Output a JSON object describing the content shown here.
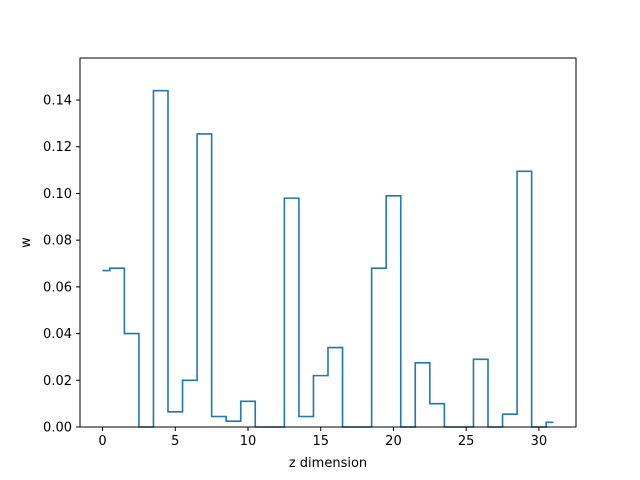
{
  "chart_data": {
    "type": "line",
    "drawstyle": "steps-mid",
    "title": "",
    "xlabel": "z dimension",
    "ylabel": "w",
    "xlim": [
      -1.55,
      32.55
    ],
    "ylim": [
      0,
      0.158
    ],
    "xticks": [
      0,
      5,
      10,
      15,
      20,
      25,
      30
    ],
    "yticks": [
      0.0,
      0.02,
      0.04,
      0.06,
      0.08,
      0.1,
      0.12,
      0.14
    ],
    "ytick_labels": [
      "0.00",
      "0.02",
      "0.04",
      "0.06",
      "0.08",
      "0.10",
      "0.12",
      "0.14"
    ],
    "grid": false,
    "line_color": "#1f77b4",
    "series": [
      {
        "x": [
          0,
          1,
          2,
          3,
          4,
          5,
          6,
          7,
          8,
          9,
          10,
          11,
          12,
          13,
          14,
          15,
          16,
          17,
          18,
          19,
          20,
          21,
          22,
          23,
          24,
          25,
          26,
          27,
          28,
          29,
          30,
          31
        ],
        "values": [
          0.067,
          0.068,
          0.04,
          0.0,
          0.144,
          0.0065,
          0.02,
          0.1255,
          0.0045,
          0.0025,
          0.011,
          0.0,
          0.0,
          0.098,
          0.0045,
          0.022,
          0.034,
          0.0,
          0.0,
          0.068,
          0.099,
          0.0,
          0.0275,
          0.01,
          0.0,
          0.0,
          0.029,
          0.0,
          0.0055,
          0.1095,
          0.0,
          0.002
        ]
      }
    ]
  }
}
